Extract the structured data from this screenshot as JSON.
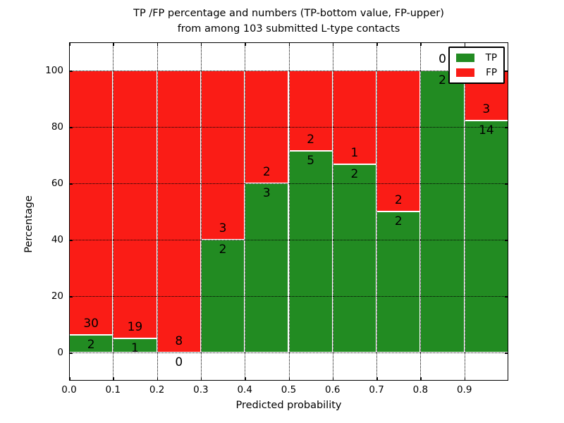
{
  "chart_data": {
    "type": "bar",
    "stacked": true,
    "title_line1": "TP /FP percentage and numbers (TP-bottom value, FP-upper)",
    "title_line2": "from among 103 submitted L-type contacts",
    "xlabel": "Predicted probability",
    "ylabel": "Percentage",
    "total_contacts": 103,
    "xlim": [
      0.0,
      1.0
    ],
    "ylim": [
      -10,
      110
    ],
    "xticks": [
      "0.0",
      "0.1",
      "0.2",
      "0.3",
      "0.4",
      "0.5",
      "0.6",
      "0.7",
      "0.8",
      "0.9"
    ],
    "yticks": [
      0,
      20,
      40,
      60,
      80,
      100
    ],
    "grid": true,
    "legend_position": "upper right",
    "legend": [
      {
        "name": "TP",
        "color": "#228B22"
      },
      {
        "name": "FP",
        "color": "#FA1C16"
      }
    ],
    "colors": {
      "tp": "#228B22",
      "fp": "#FA1C16",
      "bar_edge": "#ffffff",
      "grid": "#000000"
    },
    "bins": [
      {
        "x_from": 0.0,
        "x_to": 0.1,
        "tp": 2,
        "fp": 30,
        "tp_pct": 6.25
      },
      {
        "x_from": 0.1,
        "x_to": 0.2,
        "tp": 1,
        "fp": 19,
        "tp_pct": 5.0
      },
      {
        "x_from": 0.2,
        "x_to": 0.3,
        "tp": 0,
        "fp": 8,
        "tp_pct": 0.0
      },
      {
        "x_from": 0.3,
        "x_to": 0.4,
        "tp": 2,
        "fp": 3,
        "tp_pct": 40.0
      },
      {
        "x_from": 0.4,
        "x_to": 0.5,
        "tp": 3,
        "fp": 2,
        "tp_pct": 60.0
      },
      {
        "x_from": 0.5,
        "x_to": 0.6,
        "tp": 5,
        "fp": 2,
        "tp_pct": 71.43
      },
      {
        "x_from": 0.6,
        "x_to": 0.7,
        "tp": 2,
        "fp": 1,
        "tp_pct": 66.67
      },
      {
        "x_from": 0.7,
        "x_to": 0.8,
        "tp": 2,
        "fp": 2,
        "tp_pct": 50.0
      },
      {
        "x_from": 0.8,
        "x_to": 0.9,
        "tp": 2,
        "fp": 0,
        "tp_pct": 100.0
      },
      {
        "x_from": 0.9,
        "x_to": 1.0,
        "tp": 14,
        "fp": 3,
        "tp_pct": 82.35
      }
    ]
  }
}
